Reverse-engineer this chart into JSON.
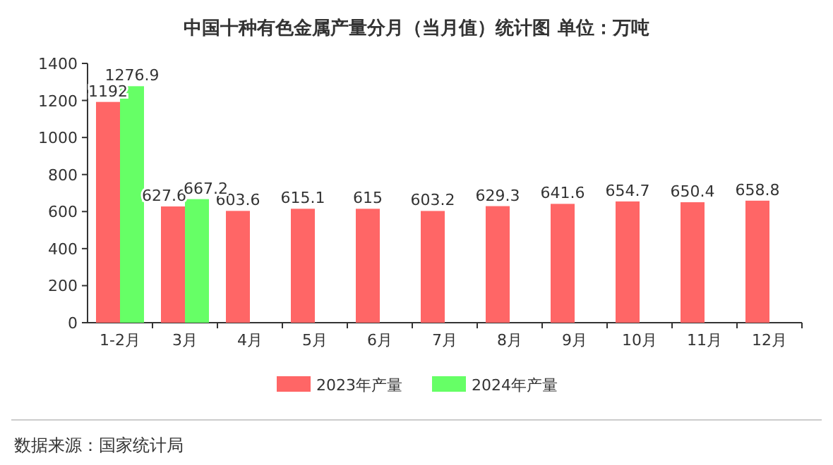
{
  "chart_data": {
    "type": "bar",
    "title": "中国十种有色金属产量分月（当月值）统计图 单位：万吨",
    "categories": [
      "1-2月",
      "3月",
      "4月",
      "5月",
      "6月",
      "7月",
      "8月",
      "9月",
      "10月",
      "11月",
      "12月"
    ],
    "series": [
      {
        "name": "2023年产量",
        "color": "#ff6666",
        "values": [
          1192,
          627.6,
          603.6,
          615.1,
          615,
          603.2,
          629.3,
          641.6,
          654.7,
          650.4,
          658.8
        ]
      },
      {
        "name": "2024年产量",
        "color": "#66ff66",
        "values": [
          1276.9,
          667.2,
          null,
          null,
          null,
          null,
          null,
          null,
          null,
          null,
          null
        ]
      }
    ],
    "ylim": [
      0,
      1400
    ],
    "yticks": [
      0,
      200,
      400,
      600,
      800,
      1000,
      1200,
      1400
    ],
    "data_labels": true,
    "legend": "bottom",
    "annotations": [
      "数据来源：国家统计局"
    ]
  }
}
